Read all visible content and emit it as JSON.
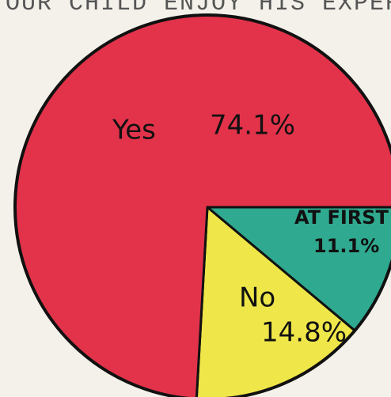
{
  "chart_data": {
    "type": "pie",
    "title": "YOUR CHILD ENJOY HIS EXPER",
    "categories": [
      "AT FIRST",
      "No",
      "Yes"
    ],
    "values": [
      11.1,
      14.8,
      74.1
    ],
    "value_labels": [
      "11.1%",
      "14.8%",
      "74.1%"
    ],
    "colors": [
      "#2fa98f",
      "#efe649",
      "#e2334b"
    ]
  }
}
